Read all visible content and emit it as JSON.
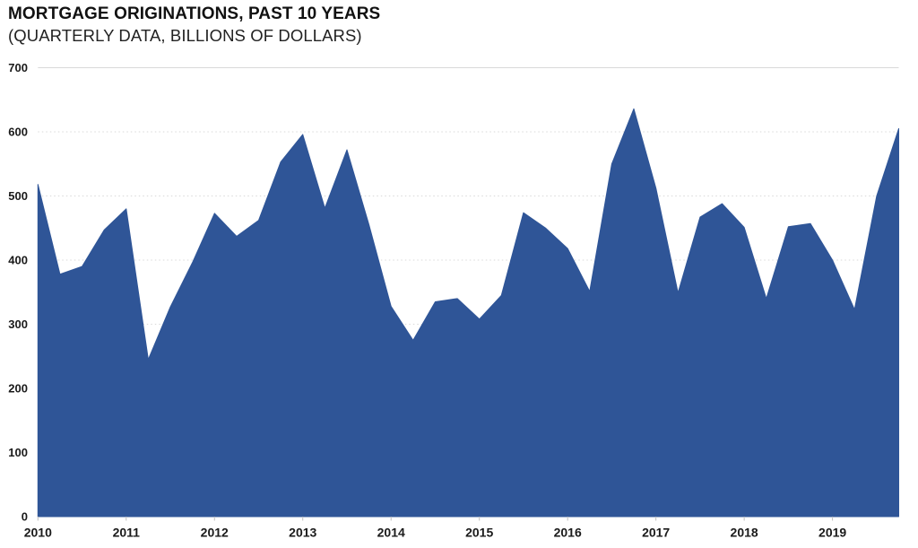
{
  "page": {
    "background": "#FFFFFF"
  },
  "chart_data": {
    "type": "area",
    "title": "MORTGAGE ORIGINATIONS, PAST 10 YEARS",
    "subtitle": "(QUARTERLY DATA, BILLIONS OF DOLLARS)",
    "categories": [
      "2010 Q1",
      "2010 Q2",
      "2010 Q3",
      "2010 Q4",
      "2011 Q1",
      "2011 Q2",
      "2011 Q3",
      "2011 Q4",
      "2012 Q1",
      "2012 Q2",
      "2012 Q3",
      "2012 Q4",
      "2013 Q1",
      "2013 Q2",
      "2013 Q3",
      "2013 Q4",
      "2014 Q1",
      "2014 Q2",
      "2014 Q3",
      "2014 Q4",
      "2015 Q1",
      "2015 Q2",
      "2015 Q3",
      "2015 Q4",
      "2016 Q1",
      "2016 Q2",
      "2016 Q3",
      "2016 Q4",
      "2017 Q1",
      "2017 Q2",
      "2017 Q3",
      "2017 Q4",
      "2018 Q1",
      "2018 Q2",
      "2018 Q3",
      "2018 Q4",
      "2019 Q1",
      "2019 Q2",
      "2019 Q3",
      "2019 Q4"
    ],
    "values": [
      518,
      378,
      390,
      447,
      480,
      245,
      327,
      396,
      473,
      437,
      462,
      553,
      596,
      481,
      572,
      455,
      328,
      275,
      335,
      340,
      308,
      345,
      474,
      450,
      418,
      351,
      550,
      636,
      512,
      349,
      467,
      488,
      451,
      340,
      452,
      457,
      400,
      323,
      500,
      605
    ],
    "x_axis": {
      "tick_labels": [
        "2010",
        "2011",
        "2012",
        "2013",
        "2014",
        "2015",
        "2016",
        "2017",
        "2018",
        "2019"
      ],
      "quarters_per_year": 4
    },
    "y_axis": {
      "ticks": [
        0,
        100,
        200,
        300,
        400,
        500,
        600,
        700
      ],
      "min": 0,
      "max": 700
    },
    "grid": {
      "horizontal": true,
      "style": "dotted",
      "top_line": "solid"
    },
    "legend": "none",
    "colors": {
      "area": "#2F5597",
      "grid": "#D9D9D9",
      "tick": "#BFBFBF",
      "text": "#1A1A1A"
    }
  }
}
